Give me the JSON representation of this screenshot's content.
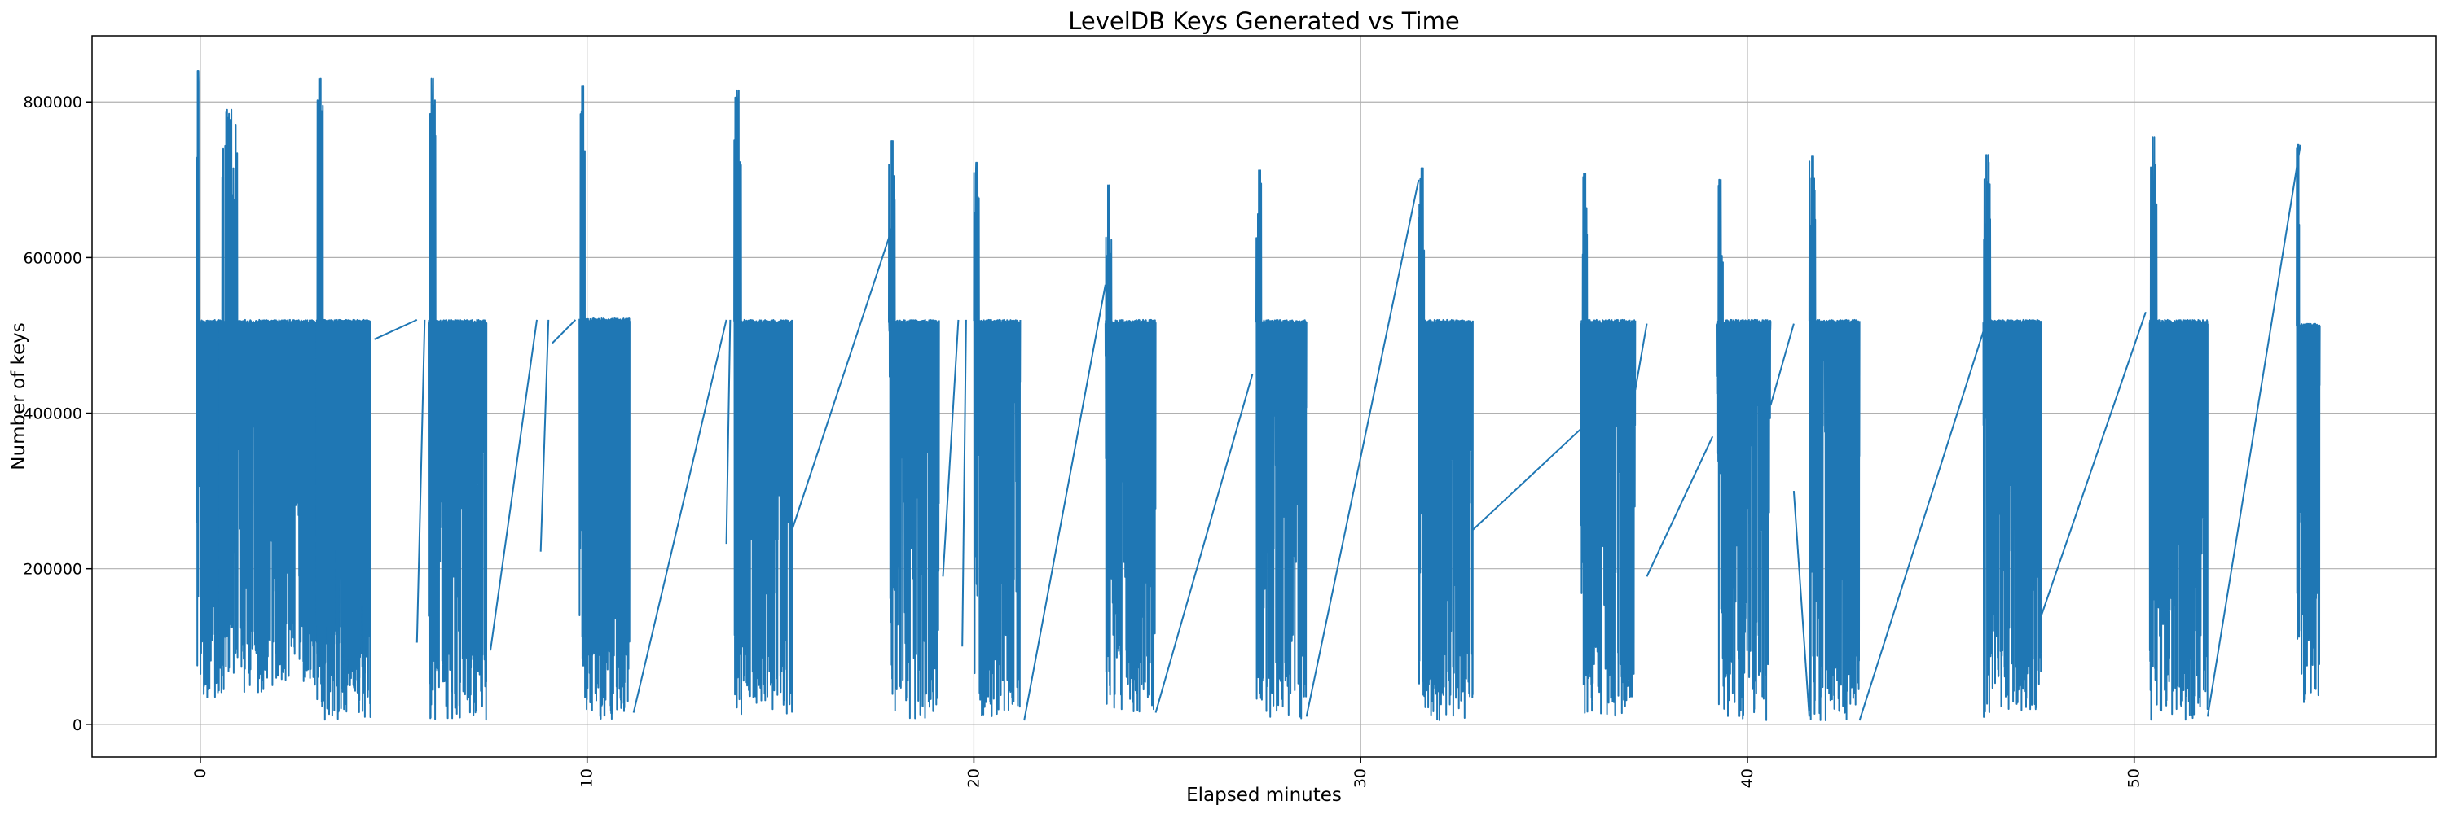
{
  "chart_data": {
    "type": "line",
    "title": "LevelDB Keys Generated vs Time",
    "xlabel": "Elapsed minutes",
    "ylabel": "Number of keys",
    "xlim": [
      -2.8,
      57.8
    ],
    "ylim": [
      -42000,
      885000
    ],
    "xticks": [
      0,
      10,
      20,
      30,
      40,
      50
    ],
    "yticks": [
      0,
      200000,
      400000,
      600000,
      800000
    ],
    "xtick_labels": [
      "0",
      "10",
      "20",
      "30",
      "40",
      "50"
    ],
    "ytick_labels": [
      "0",
      "200000",
      "400000",
      "600000",
      "800000"
    ],
    "xtick_rotation": 90,
    "grid": true,
    "legend": "none",
    "series_color": "#1f77b4",
    "bursts": [
      {
        "start": -0.1,
        "end": 0.5,
        "hi": 520000,
        "peak": 840000,
        "low": 30000
      },
      {
        "start": 0.5,
        "end": 4.3,
        "hi": 520000,
        "peak": 790000,
        "low": 40000
      },
      {
        "start": 3.0,
        "end": 4.4,
        "hi": 520000,
        "peak": 830000,
        "low": 5000
      },
      {
        "start": 5.9,
        "end": 7.4,
        "hi": 520000,
        "peak": 830000,
        "low": 5000
      },
      {
        "start": 9.8,
        "end": 11.1,
        "hi": 522000,
        "peak": 820000,
        "low": 5000
      },
      {
        "start": 13.8,
        "end": 15.3,
        "hi": 520000,
        "peak": 815000,
        "low": 10000
      },
      {
        "start": 17.8,
        "end": 19.1,
        "hi": 520000,
        "peak": 750000,
        "low": 5000
      },
      {
        "start": 20.0,
        "end": 21.2,
        "hi": 520000,
        "peak": 722000,
        "low": 5000
      },
      {
        "start": 23.4,
        "end": 24.7,
        "hi": 520000,
        "peak": 693000,
        "low": 10000
      },
      {
        "start": 27.3,
        "end": 28.6,
        "hi": 520000,
        "peak": 712000,
        "low": 5000
      },
      {
        "start": 31.5,
        "end": 32.9,
        "hi": 520000,
        "peak": 715000,
        "low": 5000
      },
      {
        "start": 35.7,
        "end": 37.1,
        "hi": 520000,
        "peak": 708000,
        "low": 10000
      },
      {
        "start": 39.2,
        "end": 40.6,
        "hi": 520000,
        "peak": 700000,
        "low": 5000
      },
      {
        "start": 41.6,
        "end": 42.9,
        "hi": 520000,
        "peak": 730000,
        "low": 5000
      },
      {
        "start": 46.1,
        "end": 47.6,
        "hi": 520000,
        "peak": 732000,
        "low": 5000
      },
      {
        "start": 50.4,
        "end": 51.9,
        "hi": 520000,
        "peak": 755000,
        "low": 5000
      },
      {
        "start": 54.2,
        "end": 54.8,
        "hi": 515000,
        "peak": 745000,
        "low": 25000
      }
    ],
    "connectors": [
      {
        "x": [
          4.5,
          5.6
        ],
        "y": [
          495000,
          520000
        ]
      },
      {
        "x": [
          5.6,
          5.8
        ],
        "y": [
          105000,
          520000
        ]
      },
      {
        "x": [
          7.5,
          8.7
        ],
        "y": [
          95000,
          520000
        ]
      },
      {
        "x": [
          8.8,
          9.0
        ],
        "y": [
          222000,
          520000
        ]
      },
      {
        "x": [
          9.1,
          9.7
        ],
        "y": [
          490000,
          520000
        ]
      },
      {
        "x": [
          11.2,
          13.6
        ],
        "y": [
          15000,
          520000
        ]
      },
      {
        "x": [
          13.6,
          13.7
        ],
        "y": [
          232000,
          520000
        ]
      },
      {
        "x": [
          15.3,
          17.9
        ],
        "y": [
          250000,
          640000
        ]
      },
      {
        "x": [
          19.2,
          19.6
        ],
        "y": [
          190000,
          520000
        ]
      },
      {
        "x": [
          19.7,
          19.8
        ],
        "y": [
          100000,
          520000
        ]
      },
      {
        "x": [
          21.3,
          23.4
        ],
        "y": [
          5000,
          565000
        ]
      },
      {
        "x": [
          24.7,
          27.2
        ],
        "y": [
          15000,
          450000
        ]
      },
      {
        "x": [
          28.6,
          31.5
        ],
        "y": [
          10000,
          700000
        ]
      },
      {
        "x": [
          32.9,
          35.7
        ],
        "y": [
          250000,
          380000
        ]
      },
      {
        "x": [
          37.1,
          37.4
        ],
        "y": [
          430000,
          515000
        ]
      },
      {
        "x": [
          37.4,
          39.1
        ],
        "y": [
          190000,
          370000
        ]
      },
      {
        "x": [
          40.6,
          41.2
        ],
        "y": [
          410000,
          515000
        ]
      },
      {
        "x": [
          41.2,
          41.6
        ],
        "y": [
          300000,
          10000
        ]
      },
      {
        "x": [
          42.9,
          46.1
        ],
        "y": [
          5000,
          505000
        ]
      },
      {
        "x": [
          47.6,
          50.3
        ],
        "y": [
          140000,
          530000
        ]
      },
      {
        "x": [
          51.9,
          54.3
        ],
        "y": [
          10000,
          745000
        ]
      }
    ]
  }
}
